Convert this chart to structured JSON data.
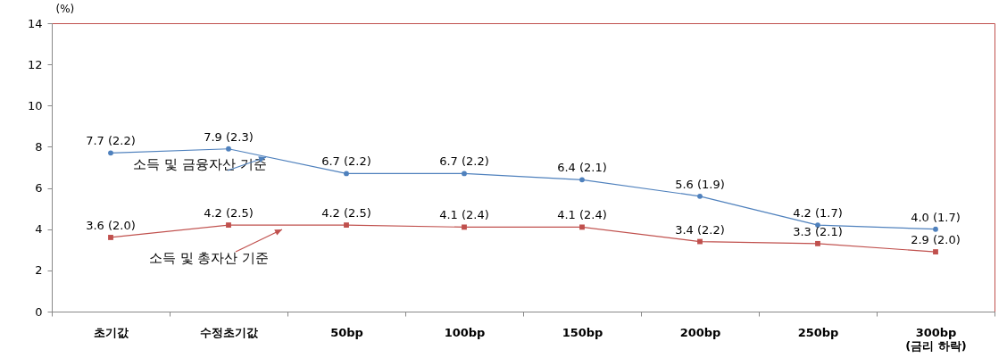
{
  "chart_data": {
    "type": "line",
    "ylabel": "(%)",
    "categories": [
      "초기값",
      "수정초기값",
      "50bp",
      "100bp",
      "150bp",
      "200bp",
      "250bp",
      "300bp\n(금리 하락)"
    ],
    "ylim": [
      0,
      14
    ],
    "yticks": [
      0,
      2,
      4,
      6,
      8,
      10,
      12,
      14
    ],
    "series": [
      {
        "name": "소득 및 금융자산 기준",
        "color": "#4f81bd",
        "marker": "circle",
        "values": [
          7.7,
          7.9,
          6.7,
          6.7,
          6.4,
          5.6,
          4.2,
          4.0
        ],
        "value_labels": [
          "7.7 (2.2)",
          "7.9 (2.3)",
          "6.7 (2.2)",
          "6.7 (2.2)",
          "6.4 (2.1)",
          "5.6 (1.9)",
          "4.2 (1.7)",
          "4.0 (1.7)"
        ]
      },
      {
        "name": "소득 및 총자산 기준",
        "color": "#c0504d",
        "marker": "square",
        "values": [
          3.6,
          4.2,
          4.2,
          4.1,
          4.1,
          3.4,
          3.3,
          2.9
        ],
        "value_labels": [
          "3.6 (2.0)",
          "4.2 (2.5)",
          "4.2 (2.5)",
          "4.1 (2.4)",
          "4.1 (2.4)",
          "3.4 (2.2)",
          "3.3 (2.1)",
          "2.9 (2.0)"
        ]
      }
    ]
  }
}
